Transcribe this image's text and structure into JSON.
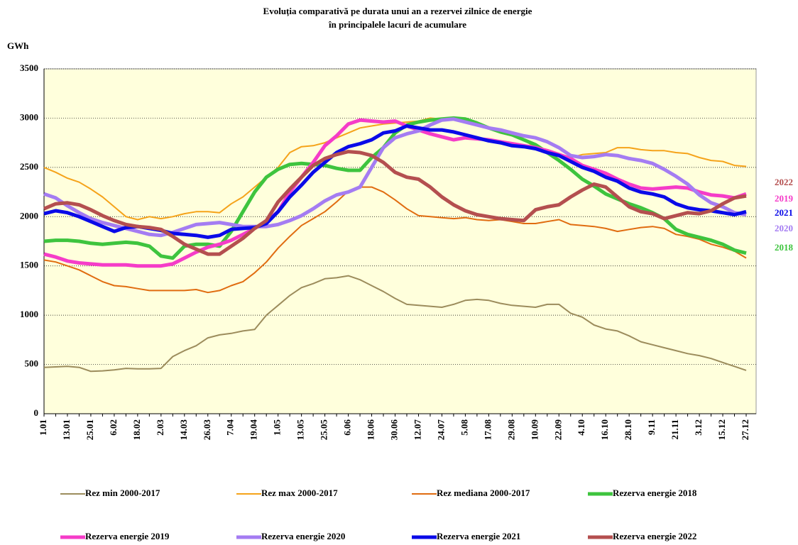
{
  "chart_data": {
    "type": "line",
    "title": "Evoluția comparativă pe durata unui an a rezervei zilnice de energie",
    "subtitle": "în principalele lacuri de acumulare",
    "y_label": "GWh",
    "categories": [
      "1.01",
      null,
      "13.01",
      null,
      "25.01",
      null,
      "6.02",
      null,
      "18.02",
      null,
      "2.03",
      null,
      "14.03",
      null,
      "26.03",
      null,
      "7.04",
      null,
      "19.04",
      null,
      "1.05",
      null,
      "13.05",
      null,
      "25.05",
      null,
      "6.06",
      null,
      "18.06",
      null,
      "30.06",
      null,
      "12.07",
      null,
      "24.07",
      null,
      "5.08",
      null,
      "17.08",
      null,
      "29.08",
      null,
      "10.09",
      null,
      "22.09",
      null,
      "4.10",
      null,
      "16.10",
      null,
      "28.10",
      null,
      "9.11",
      null,
      "21.11",
      null,
      "3.12",
      null,
      "15.12",
      null,
      "27.12"
    ],
    "ylim": [
      0,
      3500
    ],
    "yticks": [
      0,
      500,
      1000,
      1500,
      2000,
      2500,
      3000,
      3500
    ],
    "grid": true,
    "series": [
      {
        "name": "Rez min 2000-2017",
        "color": "#9c8c5c",
        "values": [
          470,
          475,
          480,
          470,
          430,
          435,
          445,
          460,
          455,
          455,
          460,
          580,
          640,
          690,
          770,
          800,
          815,
          840,
          855,
          1000,
          1100,
          1200,
          1280,
          1320,
          1370,
          1380,
          1400,
          1360,
          1300,
          1240,
          1170,
          1110,
          1100,
          1090,
          1080,
          1110,
          1150,
          1160,
          1150,
          1120,
          1100,
          1090,
          1080,
          1110,
          1110,
          1020,
          980,
          900,
          860,
          840,
          790,
          730,
          700,
          670,
          640,
          610,
          590,
          560,
          520,
          480,
          440
        ]
      },
      {
        "name": "Rez max 2000-2017",
        "color": "#f5a31a",
        "values": [
          2500,
          2450,
          2390,
          2350,
          2280,
          2200,
          2100,
          2000,
          1970,
          2000,
          1980,
          2000,
          2030,
          2050,
          2050,
          2040,
          2130,
          2200,
          2300,
          2400,
          2500,
          2650,
          2710,
          2720,
          2750,
          2800,
          2850,
          2900,
          2920,
          2940,
          2950,
          2960,
          2970,
          3000,
          2990,
          3000,
          3000,
          2960,
          2900,
          2850,
          2820,
          2780,
          2700,
          2650,
          2620,
          2600,
          2630,
          2640,
          2650,
          2700,
          2700,
          2680,
          2670,
          2670,
          2650,
          2640,
          2600,
          2570,
          2560,
          2520,
          2510
        ]
      },
      {
        "name": "Rez mediana 2000-2017",
        "color": "#e06c10",
        "values": [
          1560,
          1540,
          1500,
          1460,
          1400,
          1340,
          1300,
          1290,
          1270,
          1250,
          1250,
          1250,
          1250,
          1260,
          1230,
          1250,
          1300,
          1340,
          1430,
          1540,
          1680,
          1800,
          1910,
          1980,
          2050,
          2150,
          2260,
          2300,
          2300,
          2250,
          2170,
          2080,
          2010,
          2000,
          1990,
          1980,
          1990,
          1970,
          1960,
          1970,
          1950,
          1930,
          1930,
          1950,
          1970,
          1920,
          1910,
          1900,
          1880,
          1850,
          1870,
          1890,
          1900,
          1880,
          1820,
          1800,
          1770,
          1720,
          1690,
          1650,
          1580
        ]
      },
      {
        "name": "Rezerva energie 2018",
        "color": "#3ec43e",
        "values": [
          1750,
          1760,
          1760,
          1750,
          1730,
          1720,
          1730,
          1740,
          1730,
          1700,
          1600,
          1580,
          1700,
          1720,
          1720,
          1700,
          1850,
          2050,
          2250,
          2400,
          2480,
          2530,
          2540,
          2530,
          2520,
          2490,
          2470,
          2470,
          2600,
          2700,
          2850,
          2930,
          2960,
          2980,
          2990,
          3000,
          2990,
          2950,
          2900,
          2860,
          2830,
          2780,
          2730,
          2650,
          2570,
          2480,
          2380,
          2310,
          2230,
          2180,
          2130,
          2090,
          2040,
          1980,
          1870,
          1820,
          1790,
          1760,
          1720,
          1660,
          1630
        ]
      },
      {
        "name": "Rezerva energie 2019",
        "color": "#f53cc8",
        "values": [
          1620,
          1590,
          1550,
          1530,
          1520,
          1510,
          1510,
          1510,
          1500,
          1500,
          1500,
          1520,
          1580,
          1640,
          1690,
          1720,
          1760,
          1820,
          1880,
          1950,
          2050,
          2250,
          2400,
          2550,
          2720,
          2820,
          2940,
          2980,
          2970,
          2960,
          2970,
          2920,
          2880,
          2840,
          2810,
          2780,
          2800,
          2790,
          2780,
          2760,
          2740,
          2720,
          2700,
          2670,
          2630,
          2590,
          2520,
          2480,
          2440,
          2380,
          2330,
          2290,
          2280,
          2290,
          2300,
          2290,
          2250,
          2220,
          2210,
          2190,
          2230
        ]
      },
      {
        "name": "Rezerva energie 2020",
        "color": "#a47cf2",
        "values": [
          2230,
          2190,
          2110,
          2040,
          1980,
          1940,
          1910,
          1880,
          1850,
          1820,
          1810,
          1840,
          1880,
          1920,
          1930,
          1940,
          1920,
          1900,
          1900,
          1900,
          1920,
          1960,
          2010,
          2080,
          2160,
          2220,
          2250,
          2300,
          2500,
          2700,
          2800,
          2840,
          2870,
          2930,
          2980,
          2990,
          2960,
          2930,
          2900,
          2880,
          2850,
          2820,
          2800,
          2760,
          2700,
          2620,
          2600,
          2610,
          2630,
          2620,
          2590,
          2570,
          2540,
          2480,
          2410,
          2330,
          2220,
          2140,
          2100,
          2040,
          2020
        ]
      },
      {
        "name": "Rezerva energie 2021",
        "color": "#0a0ae8",
        "values": [
          2030,
          2060,
          2040,
          2000,
          1950,
          1900,
          1850,
          1890,
          1900,
          1880,
          1860,
          1830,
          1820,
          1810,
          1790,
          1810,
          1870,
          1880,
          1890,
          1930,
          2050,
          2200,
          2320,
          2450,
          2550,
          2650,
          2710,
          2740,
          2780,
          2850,
          2870,
          2920,
          2900,
          2880,
          2880,
          2860,
          2830,
          2800,
          2770,
          2750,
          2720,
          2710,
          2690,
          2650,
          2620,
          2560,
          2500,
          2460,
          2400,
          2360,
          2290,
          2250,
          2230,
          2200,
          2130,
          2090,
          2070,
          2060,
          2040,
          2020,
          2050
        ]
      },
      {
        "name": "Rezerva energie 2022",
        "color": "#b44f4f",
        "values": [
          2080,
          2130,
          2140,
          2120,
          2070,
          2010,
          1960,
          1920,
          1900,
          1890,
          1870,
          1800,
          1720,
          1670,
          1620,
          1620,
          1700,
          1780,
          1880,
          1960,
          2150,
          2280,
          2400,
          2520,
          2590,
          2630,
          2660,
          2650,
          2620,
          2550,
          2450,
          2400,
          2380,
          2300,
          2200,
          2120,
          2060,
          2020,
          2000,
          1980,
          1970,
          1960,
          2070,
          2100,
          2120,
          2200,
          2270,
          2330,
          2300,
          2200,
          2100,
          2050,
          2030,
          1980,
          2010,
          2040,
          2030,
          2060,
          2130,
          2190,
          2210
        ]
      }
    ],
    "annotations": [
      {
        "text": "2022",
        "color": "#b44f4f"
      },
      {
        "text": "2019",
        "color": "#f53cc8"
      },
      {
        "text": "2021",
        "color": "#0a0ae8"
      },
      {
        "text": "2020",
        "color": "#a47cf2"
      },
      {
        "text": "2018",
        "color": "#3ec43e"
      }
    ]
  }
}
